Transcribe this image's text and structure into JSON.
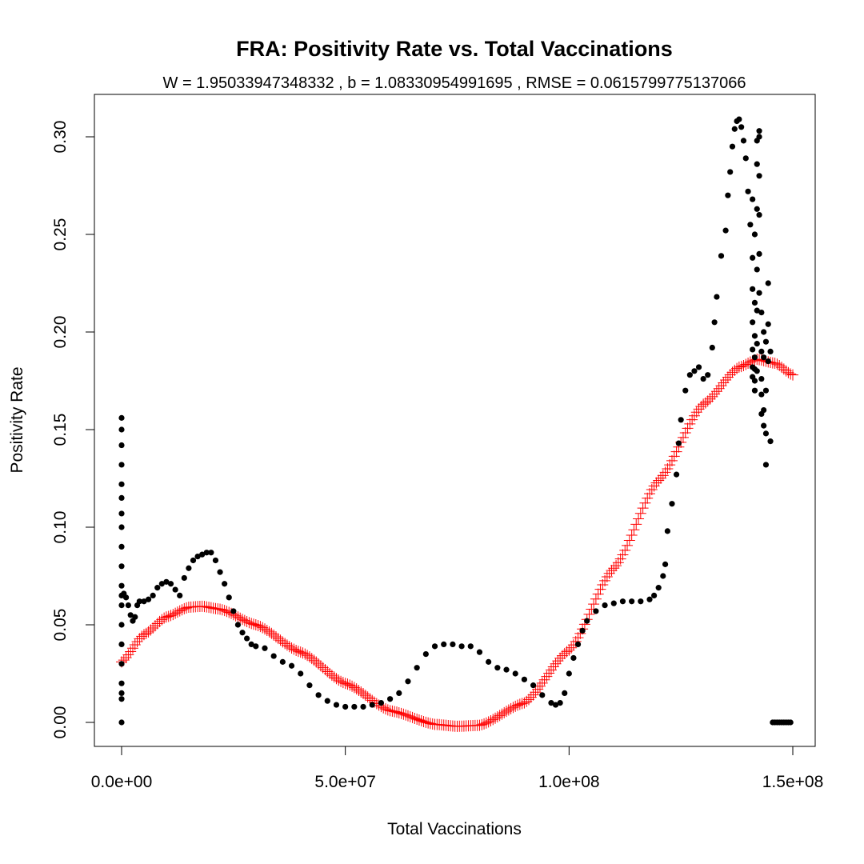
{
  "chart_data": {
    "type": "scatter",
    "title": "FRA: Positivity Rate vs. Total Vaccinations",
    "subtitle": "W = 1.95033947348332 , b = 1.08330954991695 , RMSE = 0.0615799775137066",
    "xlabel": "Total Vaccinations",
    "ylabel": "Positivity Rate",
    "xlim": [
      -6000000,
      155000000
    ],
    "ylim": [
      -0.012,
      0.32
    ],
    "x_ticks": [
      0,
      50000000,
      100000000,
      150000000
    ],
    "x_tick_labels": [
      "0.0e+00",
      "5.0e+07",
      "1.0e+08",
      "1.5e+08"
    ],
    "y_ticks": [
      0.0,
      0.05,
      0.1,
      0.15,
      0.2,
      0.25,
      0.3
    ],
    "y_tick_labels": [
      "0.00",
      "0.05",
      "0.10",
      "0.15",
      "0.20",
      "0.25",
      "0.30"
    ],
    "grid": false,
    "colors": {
      "observed": "#000000",
      "fitted": "#ff0000"
    },
    "series": [
      {
        "marker": "filled-circle",
        "x": [
          0,
          0,
          0,
          0,
          0,
          0,
          0,
          0,
          0,
          0,
          0,
          0,
          0,
          0,
          0,
          0,
          0,
          0,
          0,
          0,
          500000,
          1000000,
          1500000,
          2000000,
          2500000,
          3000000,
          3500000,
          4000000,
          5000000,
          6000000,
          7000000,
          8000000,
          9000000,
          10000000,
          11000000,
          12000000,
          13000000,
          14000000,
          15000000,
          16000000,
          17000000,
          18000000,
          19000000,
          20000000,
          21000000,
          22000000,
          23000000,
          24000000,
          25000000,
          26000000,
          27000000,
          28000000,
          29000000,
          30000000,
          32000000,
          34000000,
          36000000,
          38000000,
          40000000,
          42000000,
          44000000,
          46000000,
          48000000,
          50000000,
          52000000,
          54000000,
          56000000,
          58000000,
          60000000,
          62000000,
          64000000,
          66000000,
          68000000,
          70000000,
          72000000,
          74000000,
          76000000,
          78000000,
          80000000,
          82000000,
          84000000,
          86000000,
          88000000,
          90000000,
          92000000,
          94000000,
          96000000,
          97000000,
          98000000,
          99000000,
          100000000,
          101000000,
          102000000,
          103000000,
          104000000,
          106000000,
          108000000,
          110000000,
          112000000,
          114000000,
          116000000,
          118000000,
          119000000,
          120000000,
          121000000,
          121500000,
          122000000,
          123000000,
          124000000,
          124500000,
          125000000,
          126000000,
          127000000,
          128000000,
          129000000,
          130000000,
          131000000,
          132000000,
          132500000,
          133000000,
          134000000,
          135000000,
          135500000,
          136000000,
          136500000,
          137000000,
          137500000,
          138000000,
          138500000,
          139000000,
          139500000,
          140000000,
          140500000,
          141000000,
          141000000,
          141000000,
          141000000,
          141000000,
          141000000,
          141000000,
          141500000,
          141500000,
          141500000,
          141500000,
          141500000,
          141500000,
          141500000,
          142000000,
          142000000,
          142000000,
          142000000,
          142000000,
          142000000,
          142000000,
          142500000,
          142500000,
          142500000,
          142500000,
          142500000,
          142500000,
          143000000,
          143000000,
          143000000,
          143000000,
          143000000,
          143500000,
          143500000,
          143500000,
          143500000,
          144000000,
          144000000,
          144000000,
          144000000,
          144500000,
          144500000,
          144500000,
          145000000,
          145000000,
          145500000,
          146000000,
          146500000,
          147000000,
          147500000,
          148000000,
          148500000,
          149000000,
          149500000
        ],
        "y": [
          0.0,
          0.012,
          0.015,
          0.02,
          0.03,
          0.04,
          0.05,
          0.06,
          0.065,
          0.07,
          0.08,
          0.09,
          0.1,
          0.107,
          0.115,
          0.122,
          0.132,
          0.142,
          0.15,
          0.156,
          0.066,
          0.064,
          0.06,
          0.055,
          0.052,
          0.054,
          0.06,
          0.062,
          0.062,
          0.063,
          0.065,
          0.069,
          0.071,
          0.072,
          0.071,
          0.068,
          0.065,
          0.074,
          0.079,
          0.083,
          0.085,
          0.086,
          0.087,
          0.087,
          0.083,
          0.077,
          0.071,
          0.064,
          0.057,
          0.05,
          0.046,
          0.043,
          0.04,
          0.039,
          0.038,
          0.034,
          0.031,
          0.029,
          0.025,
          0.019,
          0.014,
          0.011,
          0.009,
          0.008,
          0.008,
          0.008,
          0.009,
          0.01,
          0.012,
          0.015,
          0.021,
          0.028,
          0.035,
          0.039,
          0.04,
          0.04,
          0.039,
          0.039,
          0.036,
          0.031,
          0.028,
          0.027,
          0.025,
          0.022,
          0.019,
          0.014,
          0.01,
          0.009,
          0.01,
          0.015,
          0.025,
          0.033,
          0.04,
          0.047,
          0.052,
          0.057,
          0.06,
          0.061,
          0.062,
          0.062,
          0.062,
          0.063,
          0.065,
          0.069,
          0.075,
          0.081,
          0.098,
          0.112,
          0.127,
          0.143,
          0.155,
          0.17,
          0.178,
          0.18,
          0.182,
          0.176,
          0.178,
          0.192,
          0.205,
          0.218,
          0.239,
          0.252,
          0.27,
          0.282,
          0.295,
          0.304,
          0.308,
          0.309,
          0.305,
          0.298,
          0.289,
          0.272,
          0.255,
          0.238,
          0.268,
          0.222,
          0.205,
          0.191,
          0.182,
          0.177,
          0.25,
          0.215,
          0.198,
          0.187,
          0.181,
          0.175,
          0.17,
          0.298,
          0.286,
          0.263,
          0.232,
          0.211,
          0.194,
          0.18,
          0.303,
          0.3,
          0.28,
          0.26,
          0.24,
          0.22,
          0.21,
          0.19,
          0.176,
          0.168,
          0.158,
          0.2,
          0.187,
          0.16,
          0.152,
          0.195,
          0.17,
          0.148,
          0.132,
          0.225,
          0.204,
          0.185,
          0.19,
          0.144,
          0.0,
          0.0,
          0.0,
          0.0,
          0.0,
          0.0,
          0.0,
          0.0,
          0.0
        ]
      },
      {
        "marker": "plus",
        "function": "fitted curve",
        "x_range": [
          0,
          150000000
        ],
        "x_step": 500000,
        "y_keypoints": {
          "x": [
            0,
            5000000,
            10000000,
            15000000,
            18000000,
            22000000,
            30000000,
            40000000,
            50000000,
            60000000,
            70000000,
            75000000,
            80000000,
            90000000,
            100000000,
            110000000,
            120000000,
            130000000,
            138000000,
            142000000,
            146000000,
            150000000
          ],
          "y": [
            0.031,
            0.045,
            0.054,
            0.059,
            0.0595,
            0.058,
            0.05,
            0.036,
            0.02,
            0.006,
            -0.001,
            -0.002,
            -0.0015,
            0.01,
            0.037,
            0.079,
            0.124,
            0.163,
            0.182,
            0.186,
            0.184,
            0.178
          ]
        }
      }
    ]
  }
}
